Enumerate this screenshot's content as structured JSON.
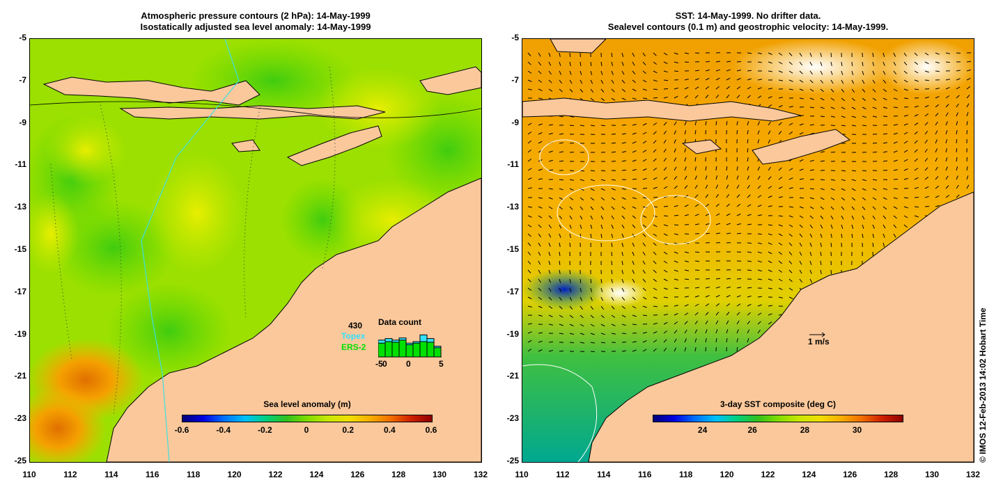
{
  "left_panel": {
    "title_line1": "Atmospheric pressure contours (2 hPa): 14-May-1999",
    "title_line2": "Isostatically adjusted sea level anomaly: 14-May-1999",
    "colorbar": {
      "title": "Sea level anomaly (m)",
      "ticks": [
        "-0.6",
        "-0.4",
        "-0.2",
        "0",
        "0.2",
        "0.4",
        "0.6"
      ]
    },
    "inset": {
      "count": "430",
      "title": "Data count",
      "topex_label": "Topex",
      "ers_label": "ERS-2",
      "xticks": [
        "-5",
        "0",
        "0",
        "5"
      ],
      "topex_color": "#33e0ff",
      "ers_color": "#00e000"
    }
  },
  "right_panel": {
    "title_line1": "SST: 14-May-1999. No drifter data.",
    "title_line2": "Sealevel contours (0.1 m) and geostrophic velocity: 14-May-1999.",
    "colorbar": {
      "title": "3-day SST composite (deg C)",
      "ticks": [
        "24",
        "26",
        "28",
        "30"
      ]
    },
    "scale_label": "1 m/s"
  },
  "axes": {
    "y_ticks": [
      "-5",
      "-7",
      "-9",
      "-11",
      "-13",
      "-15",
      "-17",
      "-19",
      "-21",
      "-23",
      "-25"
    ],
    "x_ticks": [
      "110",
      "112",
      "114",
      "116",
      "118",
      "120",
      "122",
      "124",
      "126",
      "128",
      "130",
      "132"
    ],
    "lon_range": [
      110,
      132
    ],
    "lat_range": [
      -25,
      -5
    ]
  },
  "credit": "© IMOS 12-Feb-2013 14:02 Hobart Time",
  "colors": {
    "land": "#fac89b",
    "sla_main": "#9be000",
    "sst_main": "#f5b400"
  }
}
